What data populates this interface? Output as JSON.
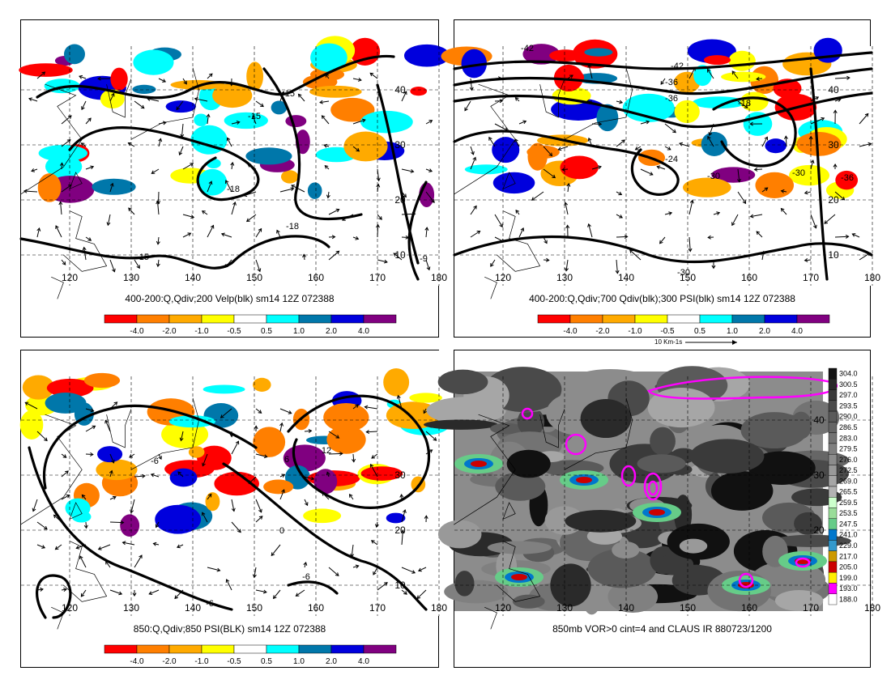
{
  "panels": [
    {
      "id": "p1",
      "caption": "400-200:Q,Qdiv;200 Velp(blk) sm14 12Z 072388",
      "lon_labels": [
        "120",
        "130",
        "140",
        "150",
        "160",
        "170",
        "180"
      ],
      "lat_labels": [
        "40",
        "30",
        "20",
        "10"
      ],
      "contour_labels": [
        "-15",
        "-15",
        "-18",
        "-18",
        "-15",
        "-9"
      ]
    },
    {
      "id": "p2",
      "caption": "400-200:Q,Qdiv;700 Qdiv(blk);300 PSI(blk) sm14 12Z 072388",
      "lon_labels": [
        "120",
        "130",
        "140",
        "150",
        "160",
        "170",
        "180"
      ],
      "lat_labels": [
        "40",
        "30",
        "20",
        "10"
      ],
      "contour_labels": [
        "-42",
        "-42",
        "-36",
        "-36",
        "-24",
        "-18",
        "-30",
        "-30",
        "-36",
        "-30"
      ],
      "vector_note": "10 Km-1s"
    },
    {
      "id": "p3",
      "caption": "850:Q,Qdiv;850 PSI(BLK) sm14 12Z 072388",
      "lon_labels": [
        "120",
        "130",
        "140",
        "150",
        "160",
        "170",
        "180"
      ],
      "lat_labels": [
        "30",
        "20",
        "10"
      ],
      "contour_labels": [
        "-6",
        "12",
        "6",
        "0",
        "-6",
        "-6"
      ]
    },
    {
      "id": "p4",
      "caption": "850mb VOR>0 cint=4 and CLAUS IR 880723/1200",
      "lon_labels": [
        "120",
        "130",
        "140",
        "150",
        "160",
        "170",
        "180"
      ],
      "lat_labels": [
        "40",
        "30",
        "20"
      ]
    }
  ],
  "colorbar": {
    "labels": [
      "-4.0",
      "-2.0",
      "-1.0",
      "-0.5",
      "0.5",
      "1.0",
      "2.0",
      "4.0"
    ],
    "colors": [
      "#ff0000",
      "#ff7f00",
      "#ffaa00",
      "#ffff00",
      "#ffffff",
      "#00ffff",
      "#0077aa",
      "#0000dd",
      "#800080"
    ]
  },
  "ir_colorbar": {
    "labels": [
      "304.0",
      "300.5",
      "297.0",
      "293.5",
      "290.0",
      "286.5",
      "283.0",
      "279.5",
      "276.0",
      "272.5",
      "269.0",
      "265.5",
      "259.5",
      "253.5",
      "247.5",
      "241.0",
      "229.0",
      "217.0",
      "205.0",
      "199.0",
      "193.0",
      "188.0"
    ],
    "colors": [
      "#111111",
      "#2a2a2a",
      "#3a3a3a",
      "#4a4a4a",
      "#5a5a5a",
      "#666666",
      "#737373",
      "#808080",
      "#8c8c8c",
      "#999999",
      "#a6a6a6",
      "#b3b3b3",
      "#ccffcc",
      "#99dd99",
      "#66cc88",
      "#0077cc",
      "#3399cc",
      "#cc9900",
      "#cc0000",
      "#ffee00",
      "#ff00ff",
      "#ffffff"
    ]
  },
  "chart_data": [
    {
      "type": "heatmap",
      "title": "400-200:Q,Qdiv;200 Velp(blk) sm14 12Z 072388",
      "x": [
        120,
        130,
        140,
        150,
        160,
        170,
        180
      ],
      "y": [
        10,
        20,
        30,
        40
      ],
      "legend": [
        "-4.0",
        "-2.0",
        "-1.0",
        "-0.5",
        "0.5",
        "1.0",
        "2.0",
        "4.0"
      ]
    },
    {
      "type": "heatmap",
      "title": "400-200:Q,Qdiv;700 Qdiv(blk);300 PSI(blk) sm14 12Z 072388",
      "x": [
        120,
        130,
        140,
        150,
        160,
        170,
        180
      ],
      "y": [
        10,
        20,
        30,
        40
      ],
      "legend": [
        "-4.0",
        "-2.0",
        "-1.0",
        "-0.5",
        "0.5",
        "1.0",
        "2.0",
        "4.0"
      ]
    },
    {
      "type": "heatmap",
      "title": "850:Q,Qdiv;850 PSI(BLK) sm14 12Z 072388",
      "x": [
        120,
        130,
        140,
        150,
        160,
        170,
        180
      ],
      "y": [
        10,
        20,
        30
      ],
      "legend": [
        "-4.0",
        "-2.0",
        "-1.0",
        "-0.5",
        "0.5",
        "1.0",
        "2.0",
        "4.0"
      ]
    },
    {
      "type": "heatmap",
      "title": "850mb VOR>0 cint=4 and CLAUS IR 880723/1200",
      "x": [
        120,
        130,
        140,
        150,
        160,
        170,
        180
      ],
      "y": [
        20,
        30,
        40
      ],
      "legend": [
        "304.0",
        "300.5",
        "297.0",
        "293.5",
        "290.0",
        "286.5",
        "283.0",
        "279.5",
        "276.0",
        "272.5",
        "269.0",
        "265.5",
        "259.5",
        "253.5",
        "247.5",
        "241.0",
        "229.0",
        "217.0",
        "205.0",
        "199.0",
        "193.0",
        "188.0"
      ]
    }
  ]
}
